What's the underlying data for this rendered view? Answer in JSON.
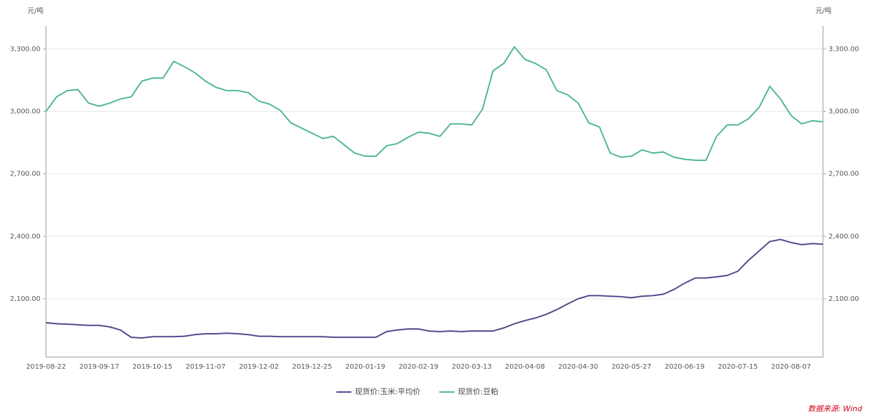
{
  "chart_data": {
    "type": "line",
    "y_label": "元/吨",
    "y2_label": "元/吨",
    "categories": [
      "2019-08-22",
      null,
      null,
      null,
      null,
      "2019-09-17",
      null,
      null,
      null,
      null,
      "2019-10-15",
      null,
      null,
      null,
      null,
      "2019-11-07",
      null,
      null,
      null,
      null,
      "2019-12-02",
      null,
      null,
      null,
      null,
      "2019-12-25",
      null,
      null,
      null,
      null,
      "2020-01-19",
      null,
      null,
      null,
      null,
      "2020-02-19",
      null,
      null,
      null,
      null,
      "2020-03-13",
      null,
      null,
      null,
      null,
      "2020-04-08",
      null,
      null,
      null,
      null,
      "2020-04-30",
      null,
      null,
      null,
      null,
      "2020-05-27",
      null,
      null,
      null,
      null,
      "2020-06-19",
      null,
      null,
      null,
      null,
      "2020-07-15",
      null,
      null,
      null,
      null,
      "2020-08-07",
      null,
      null,
      null
    ],
    "series": [
      {
        "name": "现货价:玉米:平均价",
        "color": "#4b4a8c",
        "axis": "y",
        "values": [
          1985,
          1980,
          1978,
          1975,
          1972,
          1972,
          1965,
          1950,
          1915,
          1912,
          1918,
          1918,
          1918,
          1920,
          1928,
          1932,
          1932,
          1935,
          1932,
          1928,
          1920,
          1920,
          1918,
          1918,
          1918,
          1918,
          1918,
          1915,
          1915,
          1915,
          1915,
          1915,
          1942,
          1950,
          1955,
          1955,
          1945,
          1942,
          1945,
          1942,
          1945,
          1945,
          1945,
          1960,
          1980,
          1995,
          2008,
          2025,
          2048,
          2075,
          2100,
          2115,
          2115,
          2112,
          2110,
          2105,
          2112,
          2115,
          2122,
          2145,
          2175,
          2200,
          2200,
          2205,
          2212,
          2232,
          2285,
          2330,
          2375,
          2385,
          2370,
          2360,
          2365,
          2362
        ]
      },
      {
        "name": "现货价:豆粕",
        "color": "#4fb59a",
        "axis": "y",
        "values": [
          3000,
          3070,
          3100,
          3105,
          3040,
          3025,
          3040,
          3060,
          3070,
          3145,
          3160,
          3160,
          3240,
          3215,
          3185,
          3145,
          3115,
          3100,
          3100,
          3090,
          3050,
          3035,
          3005,
          2945,
          2920,
          2895,
          2870,
          2880,
          2840,
          2800,
          2785,
          2785,
          2835,
          2845,
          2875,
          2900,
          2895,
          2880,
          2940,
          2940,
          2935,
          3010,
          3195,
          3230,
          3310,
          3250,
          3230,
          3200,
          3100,
          3080,
          3040,
          2945,
          2925,
          2800,
          2780,
          2785,
          2815,
          2800,
          2805,
          2780,
          2770,
          2765,
          2765,
          2880,
          2935,
          2935,
          2965,
          3020,
          3120,
          3060,
          2980,
          2940,
          2955,
          2950
        ]
      }
    ],
    "ylim": [
      1820,
      3410
    ],
    "yticks": [
      {
        "value": 2100,
        "label": "2,100.00"
      },
      {
        "value": 2400,
        "label": "2,400.00"
      },
      {
        "value": 2700,
        "label": "2,700.00"
      },
      {
        "value": 3000,
        "label": "3,000.00"
      },
      {
        "value": 3300,
        "label": "3,300.00"
      }
    ],
    "y2lim": [
      1820,
      3410
    ],
    "y2ticks": [
      {
        "value": 2100,
        "label": "2,100.00"
      },
      {
        "value": 2400,
        "label": "2,400.00"
      },
      {
        "value": 2700,
        "label": "2,700.00"
      },
      {
        "value": 3000,
        "label": "3,000.00"
      },
      {
        "value": 3300,
        "label": "3,300.00"
      }
    ],
    "grid": true,
    "legend": "bottom",
    "source": "数据来源: Wind"
  }
}
